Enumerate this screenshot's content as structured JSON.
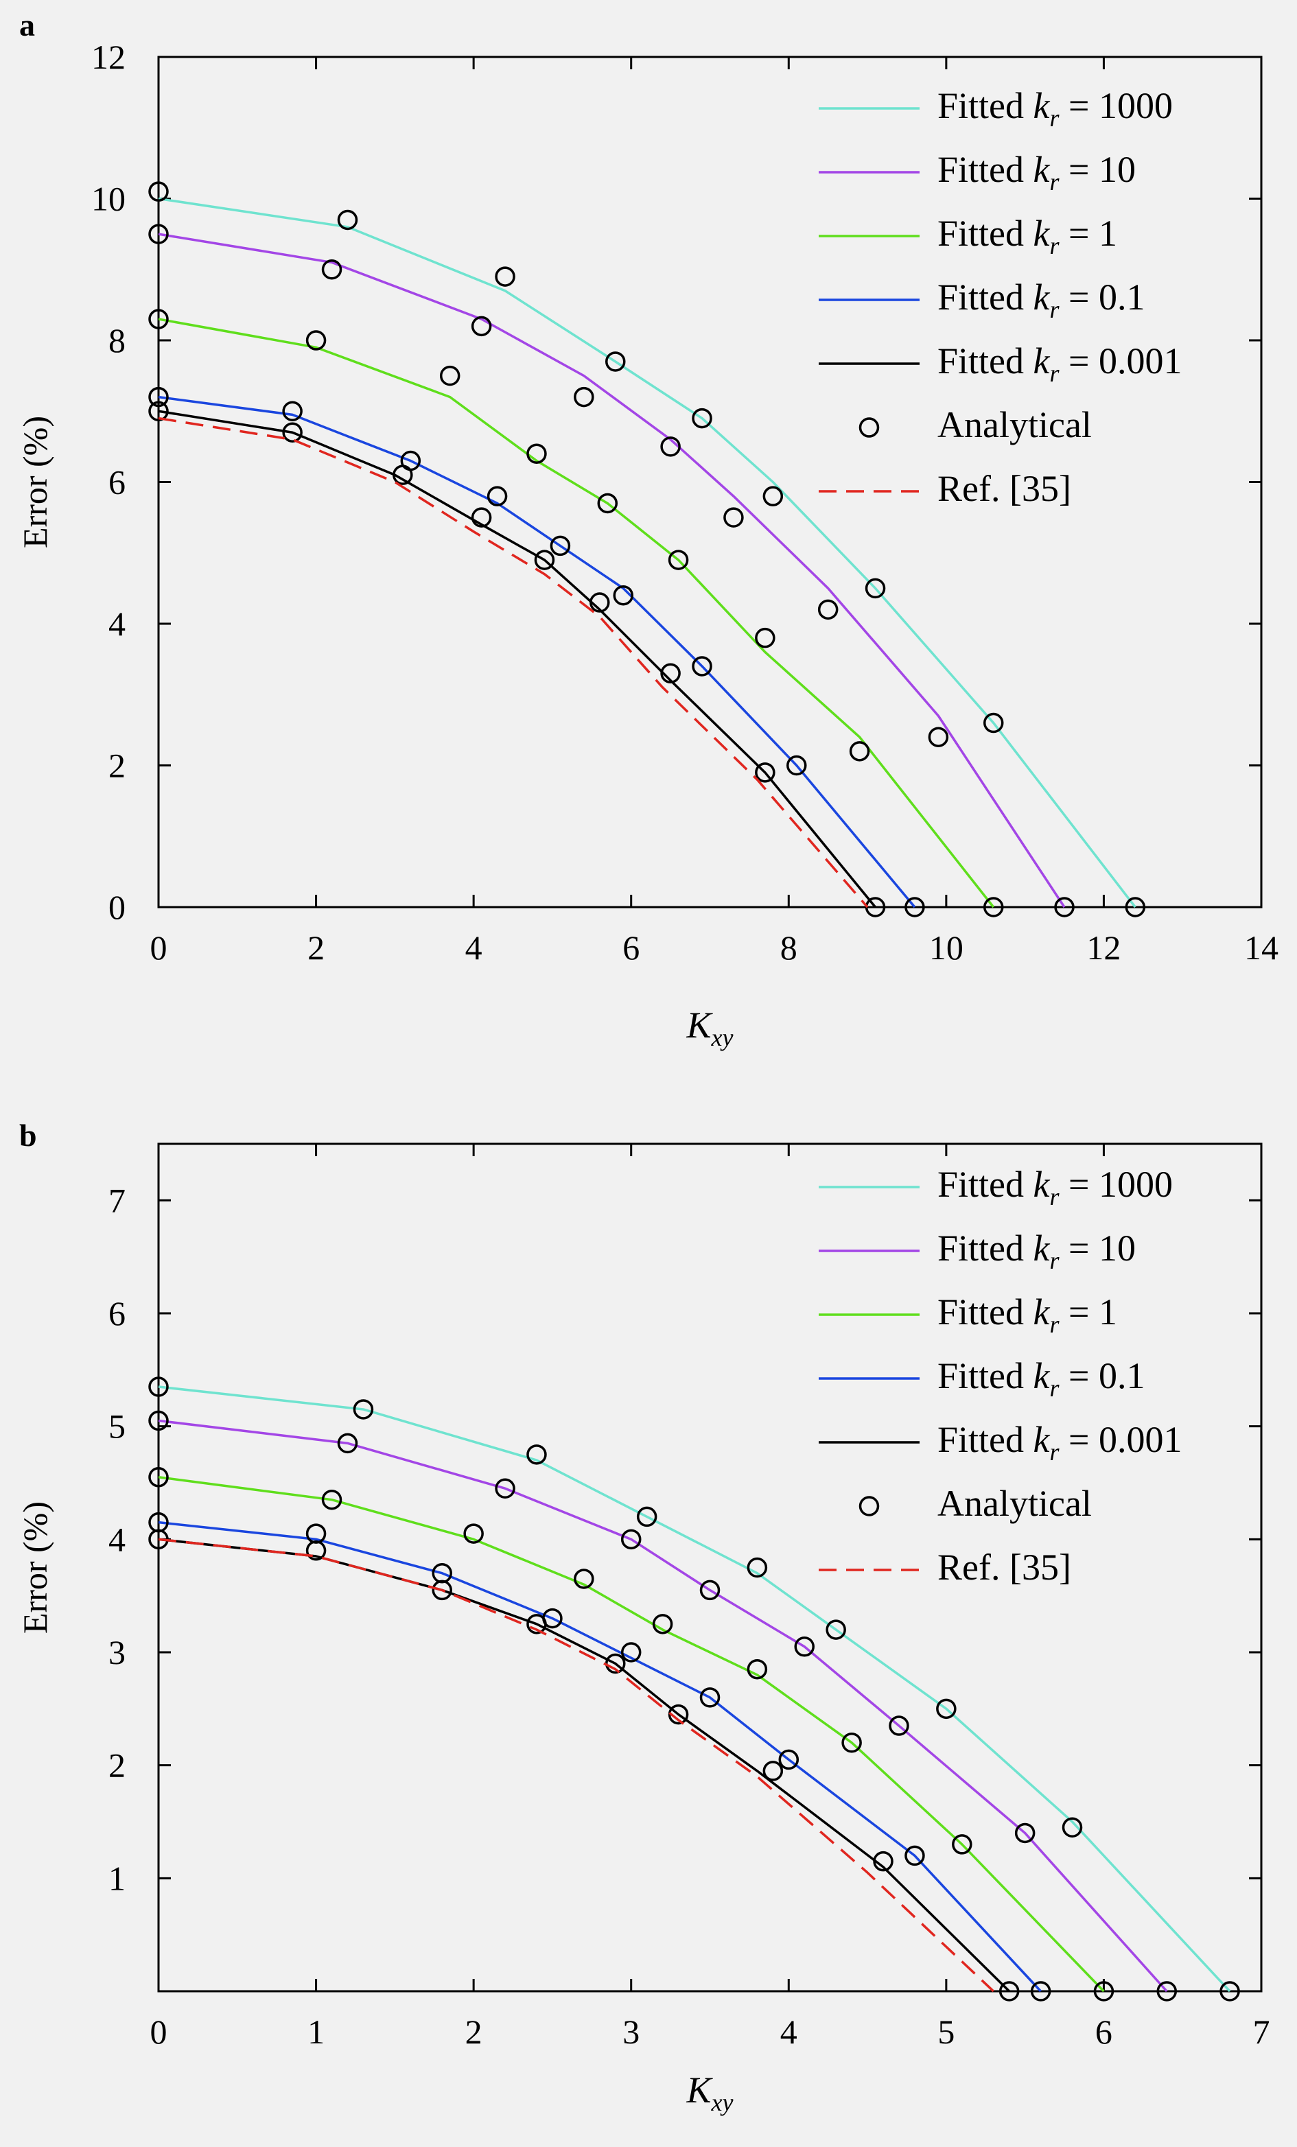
{
  "figure": {
    "panels": [
      {
        "label": "a"
      },
      {
        "label": "b"
      }
    ]
  },
  "chart_data": [
    {
      "type": "line",
      "panel": "a",
      "xlabel": "K",
      "xlabel_sub": "xy",
      "ylabel": "Error (%)",
      "xlim": [
        0,
        14
      ],
      "ylim": [
        0,
        12
      ],
      "xticks": [
        0,
        2,
        4,
        6,
        8,
        10,
        12,
        14
      ],
      "yticks": [
        0,
        2,
        4,
        6,
        8,
        10,
        12
      ],
      "legend_position": "top-right",
      "grid": false,
      "series": [
        {
          "name": "Fitted k_r = 1000",
          "legend_prefix": "Fitted ",
          "legend_symbol": "k",
          "legend_sub": "r",
          "legend_suffix": " = 1000",
          "kind": "line",
          "color": "#6fe3cf",
          "x": [
            0,
            2.4,
            4.4,
            5.8,
            6.9,
            7.8,
            9.1,
            10.6,
            12.4
          ],
          "y": [
            10.0,
            9.6,
            8.7,
            7.7,
            6.9,
            6.0,
            4.5,
            2.6,
            0
          ]
        },
        {
          "name": "Fitted k_r = 10",
          "legend_prefix": "Fitted ",
          "legend_symbol": "k",
          "legend_sub": "r",
          "legend_suffix": " = 10",
          "kind": "line",
          "color": "#a346e6",
          "x": [
            0,
            2.2,
            4.1,
            5.4,
            6.5,
            7.3,
            8.5,
            9.9,
            11.5
          ],
          "y": [
            9.5,
            9.1,
            8.3,
            7.5,
            6.6,
            5.8,
            4.5,
            2.7,
            0
          ]
        },
        {
          "name": "Fitted k_r = 1",
          "legend_prefix": "Fitted ",
          "legend_symbol": "k",
          "legend_sub": "r",
          "legend_suffix": " = 1",
          "kind": "line",
          "color": "#5fde1c",
          "x": [
            0,
            2.0,
            3.7,
            4.8,
            5.7,
            6.6,
            7.7,
            8.9,
            10.6
          ],
          "y": [
            8.3,
            7.9,
            7.2,
            6.3,
            5.7,
            4.9,
            3.6,
            2.4,
            0
          ]
        },
        {
          "name": "Fitted k_r = 0.1",
          "legend_prefix": "Fitted ",
          "legend_symbol": "k",
          "legend_sub": "r",
          "legend_suffix": " = 0.1",
          "kind": "line",
          "color": "#1a46df",
          "x": [
            0,
            1.7,
            3.2,
            4.3,
            5.1,
            5.9,
            6.9,
            8.1,
            9.6
          ],
          "y": [
            7.2,
            6.95,
            6.3,
            5.7,
            5.1,
            4.5,
            3.4,
            2.0,
            0
          ]
        },
        {
          "name": "Fitted k_r = 0.001",
          "legend_prefix": "Fitted ",
          "legend_symbol": "k",
          "legend_sub": "r",
          "legend_suffix": " = 0.001",
          "kind": "line",
          "color": "#000000",
          "x": [
            0,
            1.7,
            3.0,
            4.1,
            4.9,
            5.6,
            6.5,
            7.7,
            9.1
          ],
          "y": [
            7.0,
            6.7,
            6.1,
            5.4,
            4.9,
            4.2,
            3.2,
            1.9,
            0
          ]
        },
        {
          "name": "Analytical",
          "kind": "marker",
          "color": "#000000",
          "x": [
            0,
            0,
            0,
            0,
            0,
            1.7,
            1.7,
            2.0,
            2.2,
            2.4,
            3.1,
            3.2,
            3.7,
            4.1,
            4.1,
            4.3,
            4.4,
            4.8,
            4.9,
            5.1,
            5.4,
            5.6,
            5.7,
            5.8,
            5.9,
            6.5,
            6.5,
            6.6,
            6.9,
            6.9,
            7.3,
            7.7,
            7.7,
            7.8,
            8.1,
            8.5,
            8.9,
            9.1,
            9.1,
            9.6,
            9.9,
            10.6,
            10.6,
            11.5,
            12.4
          ],
          "y": [
            10.1,
            9.5,
            8.3,
            7.2,
            7.0,
            7.0,
            6.7,
            8.0,
            9.0,
            9.7,
            6.1,
            6.3,
            7.5,
            8.2,
            5.5,
            5.8,
            8.9,
            6.4,
            4.9,
            5.1,
            7.2,
            4.3,
            5.7,
            7.7,
            4.4,
            3.3,
            6.5,
            4.9,
            6.9,
            3.4,
            5.5,
            1.9,
            3.8,
            5.8,
            2.0,
            4.2,
            2.2,
            4.5,
            0,
            0,
            2.4,
            2.6,
            0,
            0,
            0
          ]
        },
        {
          "name": "Ref. [35]",
          "kind": "dashed",
          "color": "#e0261f",
          "x": [
            0,
            1.7,
            3.0,
            4.0,
            4.9,
            5.6,
            6.4,
            7.6,
            9.0
          ],
          "y": [
            6.9,
            6.6,
            6.0,
            5.3,
            4.7,
            4.1,
            3.1,
            1.8,
            0
          ]
        }
      ]
    },
    {
      "type": "line",
      "panel": "b",
      "xlabel": "K",
      "xlabel_sub": "xy",
      "ylabel": "Error (%)",
      "xlim": [
        0,
        7
      ],
      "ylim": [
        0,
        7.5
      ],
      "xticks": [
        0,
        1,
        2,
        3,
        4,
        5,
        6,
        7
      ],
      "yticks": [
        1,
        2,
        3,
        4,
        5,
        6,
        7
      ],
      "legend_position": "top-right",
      "grid": false,
      "series": [
        {
          "name": "Fitted k_r = 1000",
          "legend_prefix": "Fitted ",
          "legend_symbol": "k",
          "legend_sub": "r",
          "legend_suffix": " = 1000",
          "kind": "line",
          "color": "#6fe3cf",
          "x": [
            0,
            1.3,
            2.4,
            3.1,
            3.8,
            4.3,
            5.0,
            5.8,
            6.8
          ],
          "y": [
            5.35,
            5.15,
            4.7,
            4.2,
            3.7,
            3.2,
            2.5,
            1.5,
            0
          ]
        },
        {
          "name": "Fitted k_r = 10",
          "legend_prefix": "Fitted ",
          "legend_symbol": "k",
          "legend_sub": "r",
          "legend_suffix": " = 10",
          "kind": "line",
          "color": "#a346e6",
          "x": [
            0,
            1.2,
            2.2,
            3.0,
            3.5,
            4.1,
            4.7,
            5.5,
            6.4
          ],
          "y": [
            5.05,
            4.85,
            4.45,
            4.0,
            3.55,
            3.05,
            2.35,
            1.4,
            0
          ]
        },
        {
          "name": "Fitted k_r = 1",
          "legend_prefix": "Fitted ",
          "legend_symbol": "k",
          "legend_sub": "r",
          "legend_suffix": " = 1",
          "kind": "line",
          "color": "#5fde1c",
          "x": [
            0,
            1.1,
            2.0,
            2.7,
            3.2,
            3.8,
            4.4,
            5.1,
            6.0
          ],
          "y": [
            4.55,
            4.35,
            4.0,
            3.6,
            3.2,
            2.8,
            2.2,
            1.3,
            0
          ]
        },
        {
          "name": "Fitted k_r = 0.1",
          "legend_prefix": "Fitted ",
          "legend_symbol": "k",
          "legend_sub": "r",
          "legend_suffix": " = 0.1",
          "kind": "line",
          "color": "#1a46df",
          "x": [
            0,
            1.0,
            1.8,
            2.5,
            3.0,
            3.5,
            4.0,
            4.8,
            5.6
          ],
          "y": [
            4.15,
            4.0,
            3.7,
            3.3,
            2.95,
            2.6,
            2.05,
            1.2,
            0
          ]
        },
        {
          "name": "Fitted k_r = 0.001",
          "legend_prefix": "Fitted ",
          "legend_symbol": "k",
          "legend_sub": "r",
          "legend_suffix": " = 0.001",
          "kind": "line",
          "color": "#000000",
          "x": [
            0,
            1.0,
            1.8,
            2.4,
            2.9,
            3.3,
            3.8,
            4.6,
            5.4
          ],
          "y": [
            4.0,
            3.85,
            3.55,
            3.25,
            2.9,
            2.45,
            1.95,
            1.1,
            0
          ]
        },
        {
          "name": "Analytical",
          "kind": "marker",
          "color": "#000000",
          "x": [
            0,
            0,
            0,
            0,
            0,
            1.0,
            1.0,
            1.1,
            1.2,
            1.3,
            1.8,
            1.8,
            2.0,
            2.2,
            2.4,
            2.4,
            2.5,
            2.7,
            2.9,
            3.0,
            3.0,
            3.1,
            3.2,
            3.3,
            3.5,
            3.5,
            3.8,
            3.8,
            3.9,
            4.0,
            4.1,
            4.3,
            4.4,
            4.6,
            4.7,
            4.8,
            5.0,
            5.1,
            5.4,
            5.5,
            5.6,
            5.8,
            6.0,
            6.4,
            6.8
          ],
          "y": [
            5.35,
            5.05,
            4.55,
            4.15,
            4.0,
            3.9,
            4.05,
            4.35,
            4.85,
            5.15,
            3.55,
            3.7,
            4.05,
            4.45,
            3.25,
            4.75,
            3.3,
            3.65,
            2.9,
            3.0,
            4.0,
            4.2,
            3.25,
            2.45,
            2.6,
            3.55,
            2.85,
            3.75,
            1.95,
            2.05,
            3.05,
            3.2,
            2.2,
            1.15,
            2.35,
            1.2,
            2.5,
            1.3,
            0,
            1.4,
            0,
            1.45,
            0,
            0,
            0
          ]
        },
        {
          "name": "Ref. [35]",
          "kind": "dashed",
          "color": "#e0261f",
          "x": [
            0,
            1.0,
            1.8,
            2.4,
            2.9,
            3.3,
            3.8,
            4.5,
            5.3
          ],
          "y": [
            4.0,
            3.85,
            3.55,
            3.2,
            2.85,
            2.4,
            1.9,
            1.05,
            0
          ]
        }
      ]
    }
  ]
}
